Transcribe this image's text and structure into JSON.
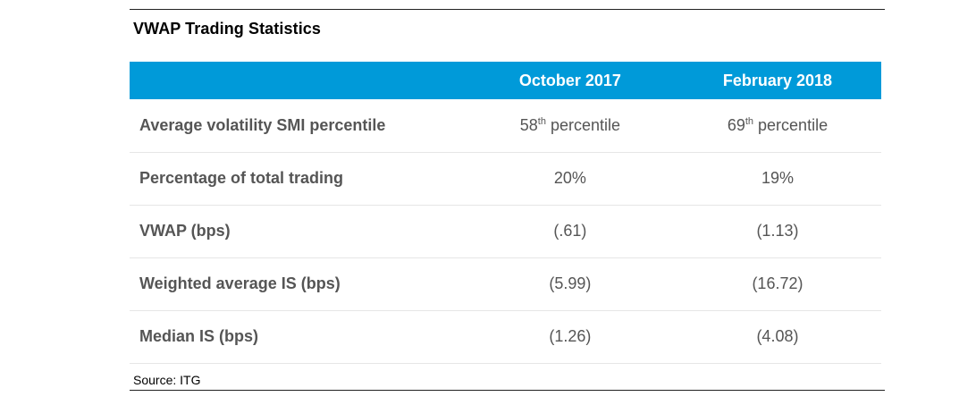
{
  "title": "VWAP Trading Statistics",
  "colors": {
    "header_bg": "#009ad9",
    "header_text": "#ffffff",
    "label_text": "#555555",
    "value_text": "#555555",
    "rule": "#222222"
  },
  "table": {
    "columns": [
      "",
      "October 2017",
      "February 2018"
    ],
    "rows": [
      {
        "label": "Average volatility SMI percentile",
        "values": [
          {
            "number": "58",
            "suffix": "th",
            "text": " percentile"
          },
          {
            "number": "69",
            "suffix": "th",
            "text": " percentile"
          }
        ]
      },
      {
        "label": "Percentage of total trading",
        "values": [
          {
            "number": "20%"
          },
          {
            "number": "19%"
          }
        ]
      },
      {
        "label": "VWAP (bps)",
        "values": [
          {
            "number": "(.61)"
          },
          {
            "number": "(1.13)"
          }
        ]
      },
      {
        "label": "Weighted average IS (bps)",
        "values": [
          {
            "number": "(5.99)"
          },
          {
            "number": "(16.72)"
          }
        ]
      },
      {
        "label": "Median IS (bps)",
        "values": [
          {
            "number": "(1.26)"
          },
          {
            "number": "(4.08)"
          }
        ]
      }
    ]
  },
  "source": "Source: ITG"
}
